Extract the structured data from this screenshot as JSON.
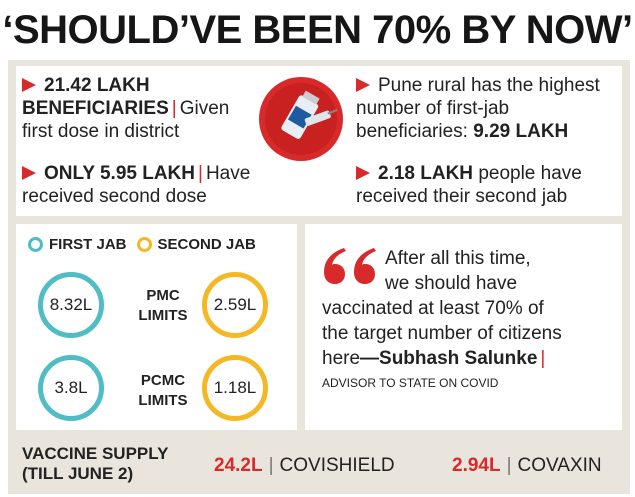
{
  "headline": "‘SHOULD’VE BEEN 70% BY NOW’",
  "stats_left": [
    {
      "bold": "21.42 LAKH BENEFICIARIES",
      "text": "Given first dose in district"
    },
    {
      "bold": "ONLY 5.95 LAKH",
      "text": "Have received second dose"
    }
  ],
  "stats_right": [
    {
      "text": "Pune rural has the highest number of first-jab beneficiaries:",
      "bold": "9.29 LAKH"
    },
    {
      "bold": "2.18 LAKH",
      "text": "people have received their second jab"
    }
  ],
  "legend": {
    "first": "FIRST JAB",
    "second": "SECOND JAB",
    "first_color": "#4fbcc6",
    "second_color": "#f4b824"
  },
  "areas": [
    {
      "name": "PMC LIMITS",
      "line1": "PMC",
      "line2": "LIMITS",
      "first": "8.32L",
      "second": "2.59L"
    },
    {
      "name": "PCMC LIMITS",
      "line1": "PCMC",
      "line2": "LIMITS",
      "first": "3.8L",
      "second": "1.18L"
    }
  ],
  "quote": {
    "line1": "After all this time,",
    "line2": "we should have",
    "line3": "vaccinated at least 70% of",
    "line4": "the target number of citizens",
    "line5": "here",
    "author": "—Subhash Salunke",
    "role": "ADVISOR TO STATE ON COVID"
  },
  "supply": {
    "label_line1": "VACCINE SUPPLY",
    "label_line2": "(TILL JUNE 2)",
    "covishield_value": "24.2L",
    "covishield_name": "COVISHIELD",
    "covaxin_value": "2.94L",
    "covaxin_name": "COVAXIN"
  },
  "colors": {
    "accent": "#d82a2a",
    "panel": "#e9e4dc",
    "first_ring": "#4fbcc6",
    "second_ring": "#f4b824"
  },
  "icons": {
    "vial": "vaccine-vial-icon",
    "quote": "quote-mark-icon",
    "arrow": "red-arrow-icon"
  }
}
